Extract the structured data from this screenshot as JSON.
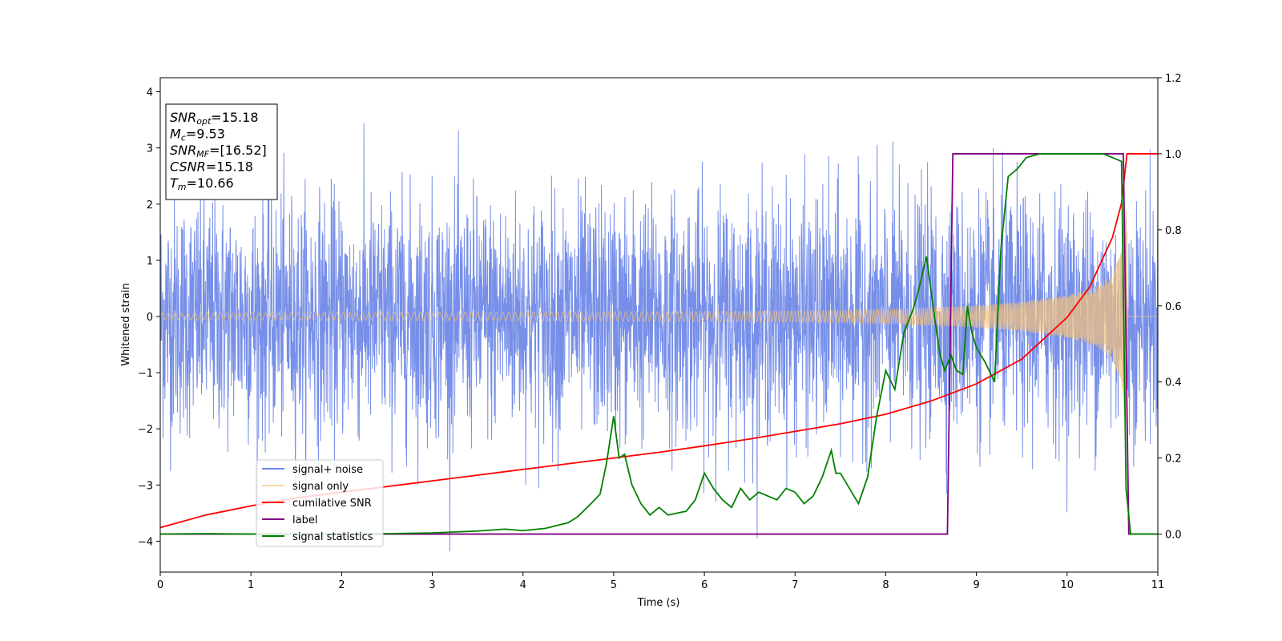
{
  "chart_data": {
    "type": "line",
    "xlabel": "Time (s)",
    "ylabel": "Whitened strain",
    "xlim": [
      0,
      11
    ],
    "ylim_left": [
      -4.55,
      4.25
    ],
    "ylim_right": [
      -0.1,
      1.2
    ],
    "xticks": [
      "0",
      "1",
      "2",
      "3",
      "4",
      "5",
      "6",
      "7",
      "8",
      "9",
      "10",
      "11"
    ],
    "yticks_left": [
      "−4",
      "−3",
      "−2",
      "−1",
      "0",
      "1",
      "2",
      "3",
      "4"
    ],
    "yticks_right": [
      "0.0",
      "0.2",
      "0.4",
      "0.6",
      "0.8",
      "1.0",
      "1.2"
    ],
    "grid": false,
    "legend_position": "lower-left",
    "colors": {
      "signal_noise": "#6b86e6",
      "signal_only": "#f5c27a",
      "cumulative_snr": "#ff0000",
      "label": "#800080",
      "signal_statistics": "#008000"
    },
    "series": [
      {
        "name": "signal+ noise",
        "axis": "left",
        "description_stats": {
          "mean": 0,
          "std": 1,
          "max_spike": 3.86,
          "min_spike": -4.18
        }
      },
      {
        "name": "signal only",
        "axis": "left",
        "envelope": {
          "x": [
            0,
            2,
            4,
            6,
            7,
            8,
            8.5,
            9,
            9.5,
            10,
            10.3,
            10.5,
            10.6,
            10.66,
            10.67,
            11
          ],
          "y": [
            0.06,
            0.07,
            0.08,
            0.09,
            0.1,
            0.13,
            0.16,
            0.2,
            0.26,
            0.38,
            0.52,
            0.75,
            1.2,
            2.2,
            0,
            0
          ]
        }
      },
      {
        "name": "cumilative SNR",
        "axis": "right",
        "x": [
          0,
          0.5,
          1,
          1.5,
          2,
          2.5,
          3,
          3.5,
          4,
          4.5,
          5,
          5.5,
          6,
          6.5,
          7,
          7.5,
          8,
          8.5,
          9,
          9.5,
          10,
          10.25,
          10.5,
          10.6,
          10.66,
          10.7,
          11
        ],
        "y": [
          0.017,
          0.05,
          0.074,
          0.095,
          0.11,
          0.125,
          0.14,
          0.155,
          0.17,
          0.185,
          0.2,
          0.215,
          0.232,
          0.25,
          0.27,
          0.29,
          0.315,
          0.35,
          0.395,
          0.46,
          0.57,
          0.65,
          0.78,
          0.87,
          1.0,
          1.0,
          1.0
        ]
      },
      {
        "name": "label",
        "axis": "right",
        "x": [
          0,
          8.68,
          8.74,
          10.62,
          10.68,
          11
        ],
        "y": [
          0,
          0,
          1,
          1,
          0,
          0
        ]
      },
      {
        "name": "signal statistics",
        "axis": "right",
        "x": [
          0,
          0.5,
          1,
          1.5,
          2,
          2.5,
          3,
          3.5,
          3.8,
          4,
          4.25,
          4.5,
          4.6,
          4.75,
          4.85,
          4.92,
          5.0,
          5.06,
          5.12,
          5.2,
          5.3,
          5.4,
          5.5,
          5.6,
          5.7,
          5.8,
          5.9,
          6.0,
          6.1,
          6.2,
          6.3,
          6.4,
          6.5,
          6.6,
          6.7,
          6.8,
          6.9,
          7.0,
          7.1,
          7.2,
          7.3,
          7.4,
          7.45,
          7.5,
          7.6,
          7.7,
          7.8,
          7.9,
          8.0,
          8.1,
          8.2,
          8.3,
          8.35,
          8.45,
          8.55,
          8.6,
          8.65,
          8.72,
          8.78,
          8.85,
          8.9,
          8.95,
          9.0,
          9.1,
          9.2,
          9.27,
          9.35,
          9.45,
          9.55,
          9.7,
          10.0,
          10.4,
          10.6,
          10.65,
          10.7,
          11
        ],
        "y": [
          0.0,
          0.001,
          0.0,
          0.0,
          0.0,
          0.001,
          0.003,
          0.008,
          0.013,
          0.009,
          0.015,
          0.03,
          0.045,
          0.08,
          0.105,
          0.185,
          0.31,
          0.2,
          0.21,
          0.13,
          0.08,
          0.05,
          0.07,
          0.05,
          0.055,
          0.06,
          0.09,
          0.16,
          0.12,
          0.09,
          0.07,
          0.12,
          0.09,
          0.11,
          0.1,
          0.09,
          0.12,
          0.11,
          0.08,
          0.1,
          0.15,
          0.22,
          0.16,
          0.16,
          0.12,
          0.08,
          0.15,
          0.31,
          0.43,
          0.38,
          0.53,
          0.59,
          0.63,
          0.73,
          0.55,
          0.47,
          0.43,
          0.47,
          0.43,
          0.42,
          0.6,
          0.53,
          0.49,
          0.45,
          0.4,
          0.75,
          0.94,
          0.96,
          0.99,
          1.0,
          1.0,
          1.0,
          0.98,
          0.12,
          0.0,
          0.0
        ]
      }
    ],
    "info_box": [
      {
        "main": "SNR",
        "sub": "opt",
        "value": "=15.18"
      },
      {
        "main": "M",
        "sub": "c",
        "value": "=9.53"
      },
      {
        "main": "SNR",
        "sub": "MF",
        "value": "=[16.52]"
      },
      {
        "main": "CSNR",
        "sub": "",
        "value": "=15.18"
      },
      {
        "main": "T",
        "sub": "m",
        "value": "=10.66"
      }
    ],
    "legend": [
      "signal+ noise",
      "signal only",
      "cumilative SNR",
      "label",
      "signal statistics"
    ]
  }
}
